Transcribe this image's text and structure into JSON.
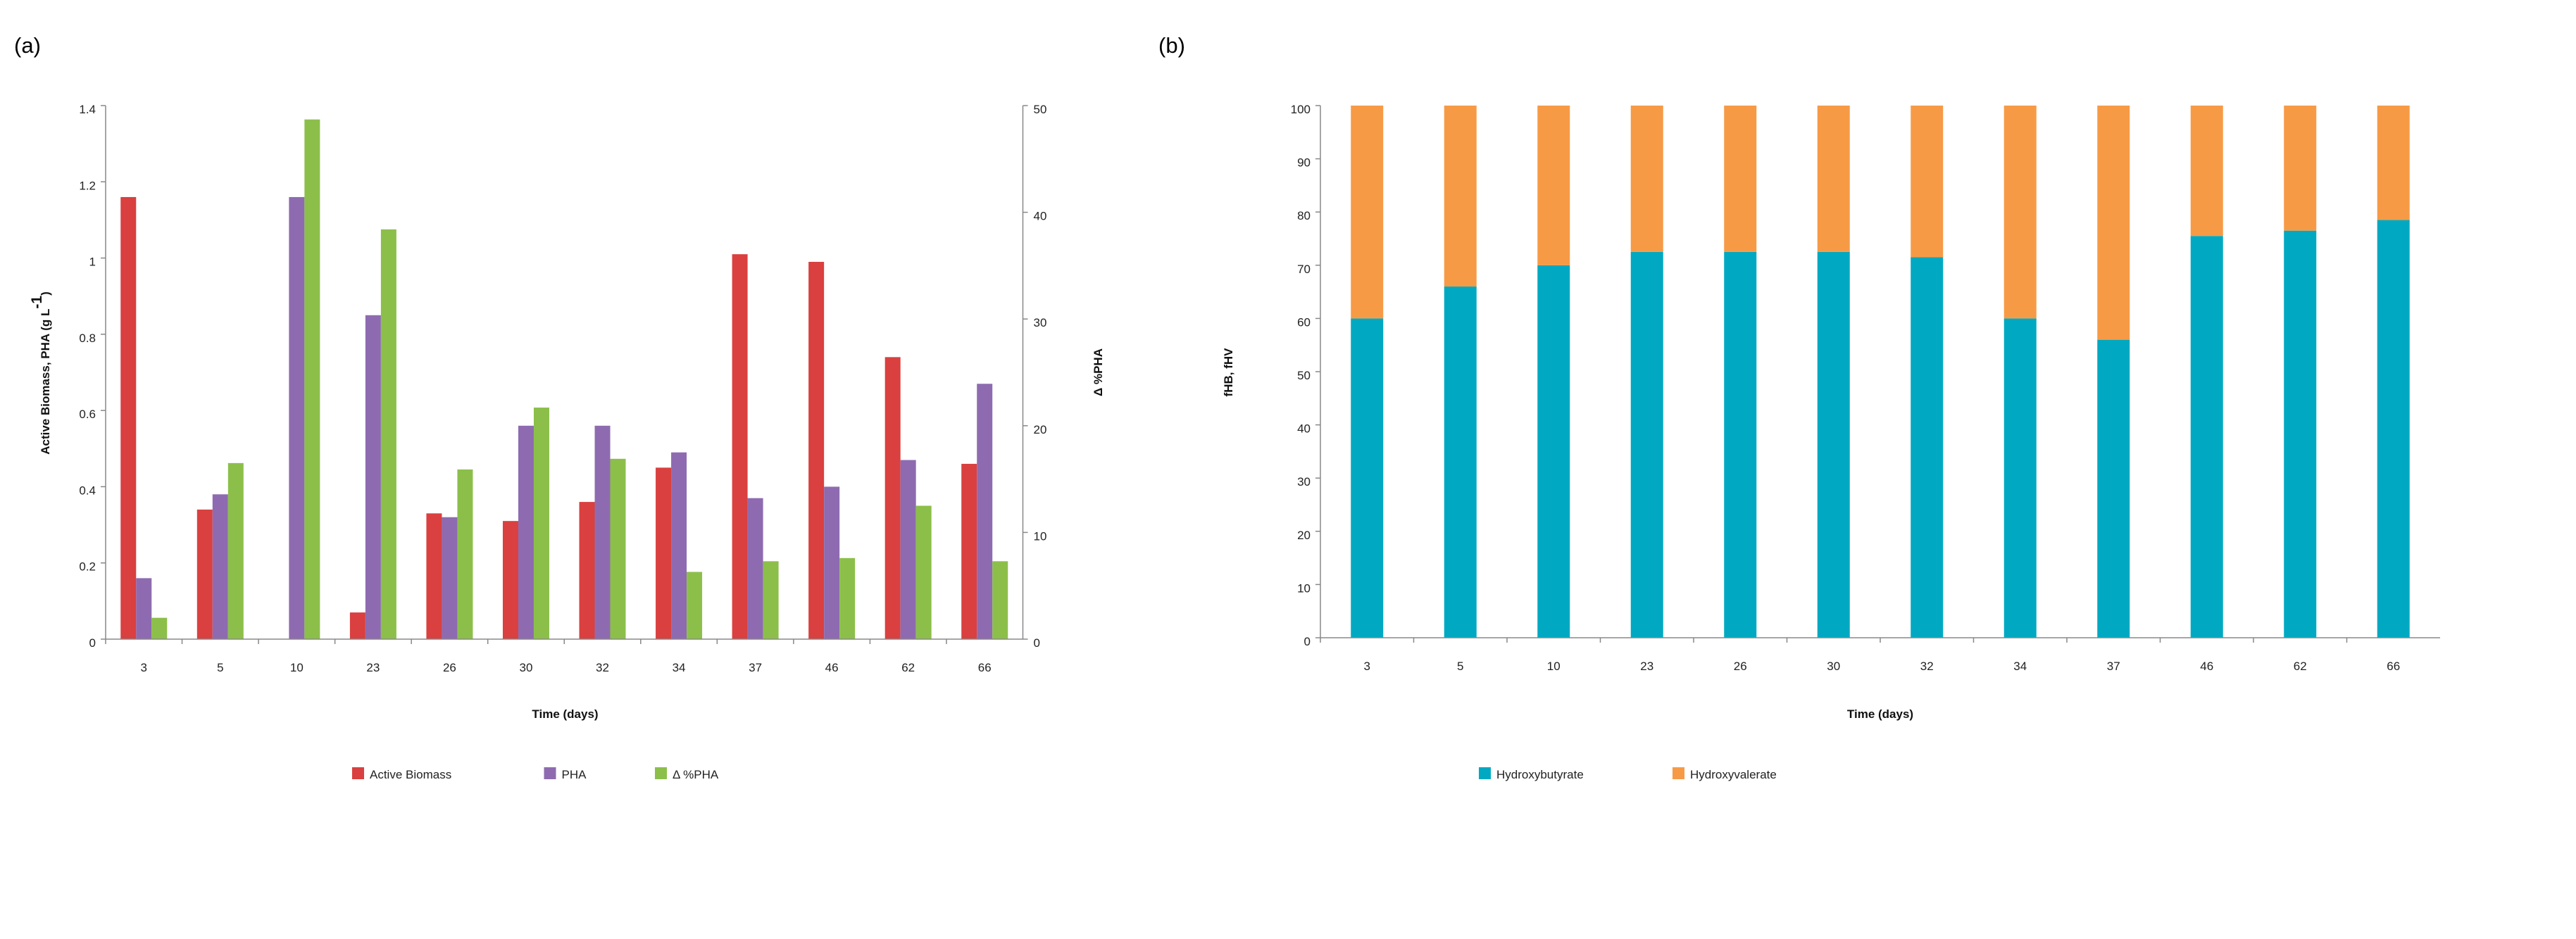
{
  "chart_data": [
    {
      "panel_label": "(a)",
      "type": "bar",
      "categories": [
        "3",
        "5",
        "10",
        "23",
        "26",
        "30",
        "32",
        "34",
        "37",
        "46",
        "62",
        "66"
      ],
      "xlabel": "Time (days)",
      "ylabel": "Active Biomass, PHA (g L",
      "ylabel_sup": "-1",
      "ylabel_close": ")",
      "ylim": [
        0,
        1.4
      ],
      "yticks": [
        "0",
        "0.2",
        "0.4",
        "0.6",
        "0.8",
        "1",
        "1.2",
        "1.4"
      ],
      "y2label": "Δ %PHA",
      "y2lim": [
        0,
        50
      ],
      "y2ticks": [
        "0",
        "10",
        "20",
        "30",
        "40",
        "50"
      ],
      "legend_position": "bottom",
      "series": [
        {
          "name": "Active Biomass",
          "axis": "left",
          "color": "#d9403f",
          "values": [
            1.16,
            0.34,
            0.0,
            0.07,
            0.33,
            0.31,
            0.36,
            0.45,
            1.01,
            0.99,
            0.74,
            0.46
          ]
        },
        {
          "name": "PHA",
          "axis": "left",
          "color": "#8e6bb0",
          "values": [
            0.16,
            0.38,
            1.16,
            0.85,
            0.32,
            0.56,
            0.56,
            0.49,
            0.37,
            0.4,
            0.47,
            0.67
          ]
        },
        {
          "name": "Δ %PHA",
          "axis": "right",
          "color": "#8cbf4a",
          "values": [
            2.0,
            16.5,
            48.7,
            38.4,
            15.9,
            21.7,
            16.9,
            6.3,
            7.3,
            7.6,
            12.5,
            7.3
          ]
        }
      ]
    },
    {
      "panel_label": "(b)",
      "type": "bar",
      "stacked": true,
      "categories": [
        "3",
        "5",
        "10",
        "23",
        "26",
        "30",
        "32",
        "34",
        "37",
        "46",
        "62",
        "66"
      ],
      "xlabel": "Time (days)",
      "ylabel": "fHB, fHV",
      "ylim": [
        0,
        100
      ],
      "yticks": [
        "0",
        "10",
        "20",
        "30",
        "40",
        "50",
        "60",
        "70",
        "80",
        "90",
        "100"
      ],
      "legend_position": "bottom",
      "series": [
        {
          "name": "Hydroxybutyrate",
          "color": "#00a9c1",
          "values": [
            60,
            66,
            70,
            72.5,
            72.5,
            72.5,
            71.5,
            60,
            56,
            75.5,
            76.5,
            78.5
          ]
        },
        {
          "name": "Hydroxyvalerate",
          "color": "#f79a46",
          "values": [
            40,
            34,
            30,
            27.5,
            27.5,
            27.5,
            28.5,
            40,
            44,
            24.5,
            23.5,
            21.5
          ]
        }
      ]
    }
  ]
}
